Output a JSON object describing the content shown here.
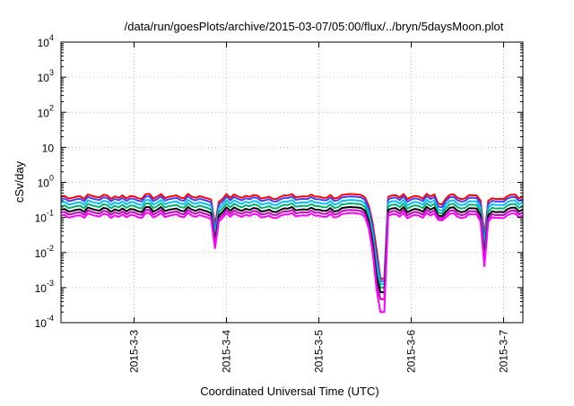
{
  "chart_data": {
    "type": "line",
    "title": "/data/run/goesPlots/archive/2015-03-07/05:00/flux/../bryn/5daysMoon.plot",
    "xlabel": "Coordinated Universal Time (UTC)",
    "ylabel": "cSv/day",
    "yscale": "log",
    "ylim": [
      0.0001,
      10000
    ],
    "y_ticks": [
      {
        "value": 0.0001,
        "base": "10",
        "exp": "-4"
      },
      {
        "value": 0.001,
        "base": "10",
        "exp": "-3"
      },
      {
        "value": 0.01,
        "base": "10",
        "exp": "-2"
      },
      {
        "value": 0.1,
        "base": "10",
        "exp": "-1"
      },
      {
        "value": 1,
        "base": "10",
        "exp": "0"
      },
      {
        "value": 10,
        "base": "10",
        "exp": ""
      },
      {
        "value": 100,
        "base": "10",
        "exp": "2"
      },
      {
        "value": 1000,
        "base": "10",
        "exp": "3"
      },
      {
        "value": 10000,
        "base": "10",
        "exp": "4"
      }
    ],
    "xlim": [
      "2015-03-02T05:00",
      "2015-03-07T05:00"
    ],
    "x_ticks": [
      "2015-3-3",
      "2015-3-4",
      "2015-3-5",
      "2015-3-6",
      "2015-3-7"
    ],
    "x_tick_dates": [
      "2015-03-03T00:00",
      "2015-03-04T00:00",
      "2015-03-05T00:00",
      "2015-03-06T00:00",
      "2015-03-07T00:00"
    ],
    "grid": true,
    "series": [
      {
        "color": "#ff0000",
        "baseline": 0.4
      },
      {
        "color": "#4040ff",
        "baseline": 0.34
      },
      {
        "color": "#00c0ff",
        "baseline": 0.27
      },
      {
        "color": "#00b070",
        "baseline": 0.215
      },
      {
        "color": "#000000",
        "baseline": 0.17
      },
      {
        "color": "#c000c0",
        "baseline": 0.14
      },
      {
        "color": "#ff00ff",
        "baseline": 0.115
      }
    ],
    "dips": [
      {
        "center": "2015-03-03T21:00",
        "half_width_hours": 1.2,
        "min": 0.014
      },
      {
        "center": "2015-03-05T14:00",
        "half_width_hours": 2.0,
        "min": 0.02
      },
      {
        "center": "2015-03-06T07:30",
        "half_width_hours": 1.0,
        "min": 0.06
      },
      {
        "center": "2015-03-06T19:00",
        "half_width_hours": 1.2,
        "min": 0.0045
      }
    ],
    "data_gap": {
      "start": "2015-03-05T15:30",
      "end": "2015-03-05T17:00",
      "trough": 0.0002
    },
    "sample_interval_minutes": 60
  }
}
